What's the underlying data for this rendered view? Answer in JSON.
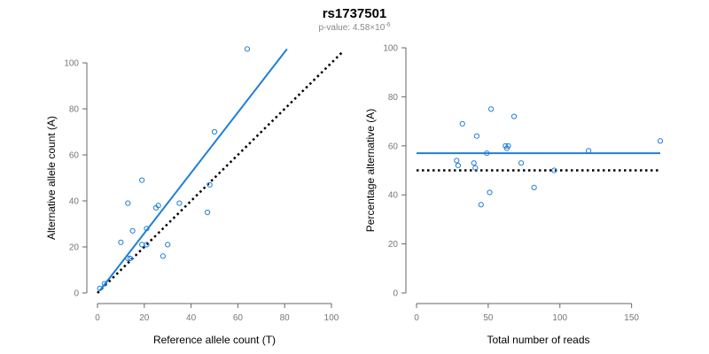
{
  "figure": {
    "title": "rs1737501",
    "subtitle_prefix": "p-value: 4.58×10",
    "subtitle_exponent": "-6"
  },
  "colors": {
    "points": "#1f7fd9",
    "fit": "#1f7fd9",
    "reference": "#000000",
    "axis": "#666666",
    "tick_text": "#777777"
  },
  "chart_data": [
    {
      "type": "scatter",
      "name": "left",
      "xlabel": "Reference allele count (T)",
      "ylabel": "Alternative allele count (A)",
      "xlim": [
        0,
        100
      ],
      "ylim": [
        0,
        100
      ],
      "xticks": [
        0,
        20,
        40,
        60,
        80,
        100
      ],
      "yticks": [
        0,
        20,
        40,
        60,
        80,
        100
      ],
      "points": [
        [
          1,
          2
        ],
        [
          3,
          4
        ],
        [
          10,
          22
        ],
        [
          13,
          15
        ],
        [
          14,
          15
        ],
        [
          13,
          39
        ],
        [
          15,
          27
        ],
        [
          19,
          49
        ],
        [
          19,
          21
        ],
        [
          21,
          21
        ],
        [
          21,
          28
        ],
        [
          25,
          37
        ],
        [
          26,
          38
        ],
        [
          28,
          16
        ],
        [
          30,
          21
        ],
        [
          35,
          39
        ],
        [
          47,
          35
        ],
        [
          48,
          47
        ],
        [
          50,
          70
        ],
        [
          64,
          106
        ]
      ],
      "fit_line": [
        [
          1,
          1
        ],
        [
          81,
          106
        ]
      ],
      "reference_line": [
        [
          0,
          0
        ],
        [
          105,
          105
        ]
      ],
      "grid": false
    },
    {
      "type": "scatter",
      "name": "right",
      "xlabel": "Total number of reads",
      "ylabel": "Percentage alternative (A)",
      "xlim": [
        0,
        170
      ],
      "ylim": [
        0,
        100
      ],
      "xticks": [
        0,
        50,
        100,
        150
      ],
      "yticks": [
        0,
        20,
        40,
        60,
        80,
        100
      ],
      "points": [
        [
          28,
          54
        ],
        [
          29,
          52
        ],
        [
          32,
          69
        ],
        [
          40,
          53
        ],
        [
          41,
          51
        ],
        [
          42,
          64
        ],
        [
          45,
          36
        ],
        [
          49,
          57
        ],
        [
          51,
          41
        ],
        [
          52,
          75
        ],
        [
          62,
          60
        ],
        [
          63,
          59
        ],
        [
          64,
          60
        ],
        [
          68,
          72
        ],
        [
          73,
          53
        ],
        [
          82,
          43
        ],
        [
          96,
          50
        ],
        [
          120,
          58
        ],
        [
          170,
          62
        ]
      ],
      "fit_line": [
        [
          0,
          57
        ],
        [
          170,
          57
        ]
      ],
      "reference_line": [
        [
          0,
          50
        ],
        [
          170,
          50
        ]
      ],
      "grid": false
    }
  ]
}
